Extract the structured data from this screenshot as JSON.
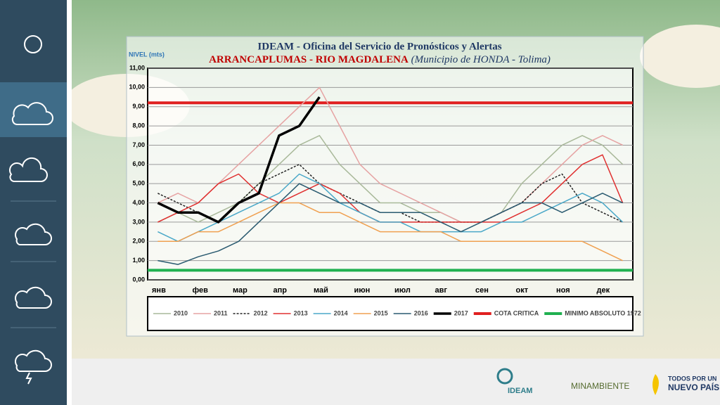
{
  "chart_data": {
    "type": "line",
    "title": "IDEAM - Oficina del Servicio de Pronósticos y Alertas",
    "subtitle": "ARRANCAPLUMAS - RIO MAGDALENA",
    "subtitle_note": "(Municipio de HONDA - Tolima)",
    "y_label": "NIVEL (mts)",
    "categories": [
      "янв",
      null,
      "фев",
      null,
      "мар",
      null,
      "апр",
      null,
      "май",
      null,
      "июн",
      null,
      "июл",
      null,
      "авг",
      null,
      "сен",
      null,
      "окт",
      null,
      "ноя",
      null,
      "дек",
      null
    ],
    "ylim": [
      0,
      11
    ],
    "yticks": [
      {
        "value": 0,
        "label": "0,00"
      },
      {
        "value": 1,
        "label": "1,00"
      },
      {
        "value": 2,
        "label": "2,00"
      },
      {
        "value": 3,
        "label": "3,00"
      },
      {
        "value": 4,
        "label": "4,00"
      },
      {
        "value": 5,
        "label": "5,00"
      },
      {
        "value": 6,
        "label": "6,00"
      },
      {
        "value": 7,
        "label": "7,00"
      },
      {
        "value": 8,
        "label": "8,00"
      },
      {
        "value": 9,
        "label": "9,00"
      },
      {
        "value": 10,
        "label": "10,00"
      },
      {
        "value": 11,
        "label": "11,00"
      }
    ],
    "grid": true,
    "series": [
      {
        "name": "2010",
        "color": "#a9b99a",
        "values": [
          3,
          3.5,
          3,
          3.5,
          4,
          5,
          6,
          7,
          7.5,
          6,
          5,
          4,
          4,
          3.5,
          3.5,
          3,
          3,
          3.5,
          5,
          6,
          7,
          7.5,
          7,
          6
        ]
      },
      {
        "name": "2011",
        "color": "#e6a3a3",
        "values": [
          4,
          4.5,
          4,
          5,
          6,
          7,
          8,
          9,
          10,
          8,
          6,
          5,
          4.5,
          4,
          3.5,
          3,
          3,
          3.5,
          4,
          5,
          6,
          7,
          7.5,
          7
        ]
      },
      {
        "name": "2012",
        "color": "#222222",
        "line_style": "dashed",
        "values": [
          4.5,
          4,
          3.5,
          3,
          4,
          5,
          5.5,
          6,
          5,
          4.5,
          4,
          3.5,
          3.5,
          3,
          3,
          3,
          3,
          3.5,
          4,
          5,
          5.5,
          4,
          3.5,
          3
        ]
      },
      {
        "name": "2013",
        "color": "#e03030",
        "values": [
          3,
          3.5,
          4,
          5,
          5.5,
          4.5,
          4,
          4.5,
          5,
          4.5,
          3.5,
          3,
          3,
          3,
          3,
          3,
          3,
          3,
          3.5,
          4,
          5,
          6,
          6.5,
          4
        ]
      },
      {
        "name": "2014",
        "color": "#4aa8c8",
        "values": [
          2.5,
          2,
          2.5,
          3,
          3.5,
          4,
          4.5,
          5.5,
          5,
          4,
          3.5,
          3,
          3,
          2.5,
          2.5,
          2.5,
          2.5,
          3,
          3,
          3.5,
          4,
          4.5,
          4,
          3
        ]
      },
      {
        "name": "2015",
        "color": "#f0a050",
        "values": [
          2,
          2,
          2.5,
          2.5,
          3,
          3.5,
          4,
          4,
          3.5,
          3.5,
          3,
          2.5,
          2.5,
          2.5,
          2.5,
          2,
          2,
          2,
          2,
          2,
          2,
          2,
          1.5,
          1
        ]
      },
      {
        "name": "2016",
        "color": "#2a5a70",
        "values": [
          1,
          0.8,
          1.2,
          1.5,
          2,
          3,
          4,
          5,
          4.5,
          4,
          4,
          3.5,
          3.5,
          3.5,
          3,
          2.5,
          3,
          3.5,
          4,
          4,
          3.5,
          4,
          4.5,
          4
        ]
      },
      {
        "name": "2017",
        "color": "#000000",
        "line_style": "bold",
        "values": [
          4,
          3.5,
          3.5,
          3,
          4,
          4.5,
          7.5,
          8,
          9.5,
          null,
          null,
          null,
          null,
          null,
          null,
          null,
          null,
          null,
          null,
          null,
          null,
          null,
          null,
          null
        ]
      }
    ],
    "reference_lines": [
      {
        "name": "COTA CRITICA",
        "color": "#e02020",
        "value": 9.2
      },
      {
        "name": "MINIMO ABSOLUTO 1972",
        "color": "#20b050",
        "value": 0.5
      }
    ]
  },
  "footer": {
    "ideam": "IDEAM",
    "minambiente": "MINAMBIENTE",
    "slogan_top": "TODOS POR UN",
    "slogan_main": "NUEVO PAÍS"
  }
}
